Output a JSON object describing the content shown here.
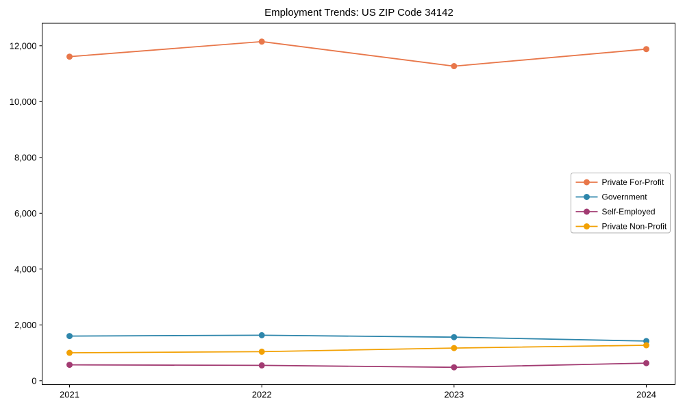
{
  "chart_data": {
    "type": "line",
    "title": "Employment Trends: US ZIP Code 34142",
    "xlabel": "",
    "ylabel": "",
    "categories": [
      "2021",
      "2022",
      "2023",
      "2024"
    ],
    "series": [
      {
        "name": "Private For-Profit",
        "color": "#E8774A",
        "values": [
          11610,
          12150,
          11270,
          11880
        ]
      },
      {
        "name": "Government",
        "color": "#2E86AB",
        "values": [
          1600,
          1630,
          1560,
          1420
        ]
      },
      {
        "name": "Self-Employed",
        "color": "#A23B72",
        "values": [
          570,
          550,
          480,
          630
        ]
      },
      {
        "name": "Private Non-Profit",
        "color": "#F2A104",
        "values": [
          1000,
          1040,
          1170,
          1270
        ]
      }
    ],
    "ylim": [
      -140,
      12805
    ],
    "y_ticks": [
      0,
      2000,
      4000,
      6000,
      8000,
      10000,
      12000
    ],
    "y_tick_format": "comma",
    "grid": false,
    "legend_position": "right-middle",
    "marker": "circle",
    "axis_color": "#000000",
    "legend_border_color": "#b0b0b0",
    "background_color": "#ffffff"
  }
}
